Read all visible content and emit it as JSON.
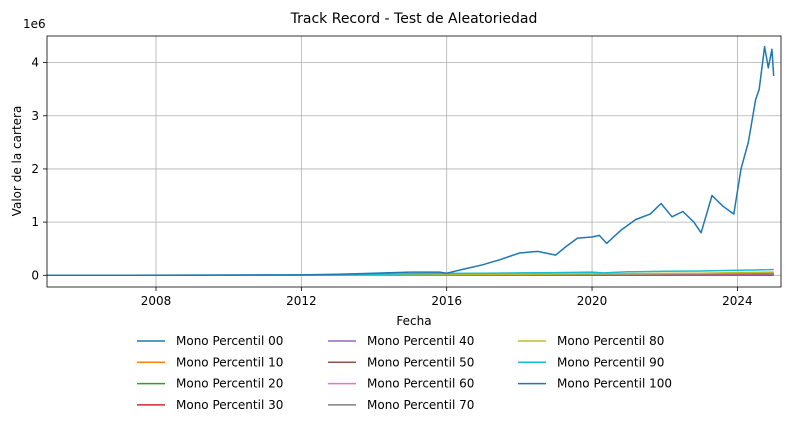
{
  "chart_data": {
    "type": "line",
    "title": "Track Record - Test de Aleatoriedad",
    "xlabel": "Fecha",
    "ylabel": "Valor de la cartera",
    "y_offset_text": "1e6",
    "xlim": [
      2005.0,
      2025.2
    ],
    "ylim": [
      -0.22,
      4.5
    ],
    "x_ticks": [
      2008,
      2012,
      2016,
      2020,
      2024
    ],
    "y_ticks": [
      0,
      1,
      2,
      3,
      4
    ],
    "grid": true,
    "legend_placement": "below-center",
    "series": [
      {
        "name": "Mono Percentil 00",
        "color": "#1f77b4",
        "x": [
          2005.0,
          2025.0
        ],
        "y": [
          0.0,
          0.0
        ]
      },
      {
        "name": "Mono Percentil 10",
        "color": "#ff7f0e",
        "x": [
          2005.0,
          2012.0,
          2016.0,
          2020.0,
          2025.0
        ],
        "y": [
          0.0,
          0.0,
          0.001,
          0.003,
          0.006
        ]
      },
      {
        "name": "Mono Percentil 20",
        "color": "#2ca02c",
        "x": [
          2005.0,
          2012.0,
          2016.0,
          2020.0,
          2025.0
        ],
        "y": [
          0.0,
          0.001,
          0.002,
          0.005,
          0.01
        ]
      },
      {
        "name": "Mono Percentil 30",
        "color": "#d62728",
        "x": [
          2005.0,
          2012.0,
          2016.0,
          2020.0,
          2025.0
        ],
        "y": [
          0.0,
          0.001,
          0.003,
          0.007,
          0.014
        ]
      },
      {
        "name": "Mono Percentil 40",
        "color": "#9467bd",
        "x": [
          2005.0,
          2012.0,
          2016.0,
          2020.0,
          2025.0
        ],
        "y": [
          0.0,
          0.001,
          0.004,
          0.009,
          0.02
        ]
      },
      {
        "name": "Mono Percentil 50",
        "color": "#8c564b",
        "x": [
          2005.0,
          2012.0,
          2016.0,
          2020.0,
          2025.0
        ],
        "y": [
          0.0,
          0.002,
          0.006,
          0.012,
          0.026
        ]
      },
      {
        "name": "Mono Percentil 60",
        "color": "#e377c2",
        "x": [
          2005.0,
          2012.0,
          2016.0,
          2020.0,
          2025.0
        ],
        "y": [
          0.0,
          0.002,
          0.008,
          0.016,
          0.034
        ]
      },
      {
        "name": "Mono Percentil 70",
        "color": "#7f7f7f",
        "x": [
          2005.0,
          2012.0,
          2016.0,
          2020.0,
          2025.0
        ],
        "y": [
          0.0,
          0.003,
          0.01,
          0.02,
          0.045
        ]
      },
      {
        "name": "Mono Percentil 80",
        "color": "#bcbd22",
        "x": [
          2005.0,
          2010.0,
          2012.0,
          2014.0,
          2016.0,
          2018.0,
          2020.0,
          2021.0,
          2022.0,
          2023.0,
          2024.0,
          2025.0
        ],
        "y": [
          0.0,
          0.002,
          0.004,
          0.008,
          0.014,
          0.02,
          0.028,
          0.032,
          0.036,
          0.04,
          0.05,
          0.06
        ]
      },
      {
        "name": "Mono Percentil 90",
        "color": "#17becf",
        "x": [
          2005.0,
          2010.0,
          2012.0,
          2013.0,
          2014.0,
          2015.0,
          2016.0,
          2017.0,
          2018.0,
          2019.0,
          2020.0,
          2020.3,
          2021.0,
          2022.0,
          2023.0,
          2024.0,
          2024.5,
          2025.0
        ],
        "y": [
          0.0,
          0.003,
          0.006,
          0.01,
          0.018,
          0.028,
          0.035,
          0.04,
          0.045,
          0.05,
          0.06,
          0.045,
          0.065,
          0.075,
          0.08,
          0.095,
          0.1,
          0.11
        ]
      },
      {
        "name": "Mono Percentil 100",
        "color": "#1f77b4",
        "x": [
          2005.0,
          2008.0,
          2010.0,
          2012.0,
          2013.0,
          2014.0,
          2015.0,
          2015.8,
          2016.0,
          2016.5,
          2017.0,
          2017.5,
          2018.0,
          2018.5,
          2019.0,
          2019.3,
          2019.6,
          2020.0,
          2020.2,
          2020.4,
          2020.8,
          2021.2,
          2021.6,
          2021.9,
          2022.2,
          2022.5,
          2022.8,
          2023.0,
          2023.3,
          2023.6,
          2023.9,
          2024.1,
          2024.3,
          2024.5,
          2024.6,
          2024.75,
          2024.85,
          2024.95,
          2025.0
        ],
        "y": [
          0.0,
          0.001,
          0.004,
          0.008,
          0.02,
          0.04,
          0.06,
          0.06,
          0.04,
          0.12,
          0.2,
          0.3,
          0.42,
          0.45,
          0.38,
          0.55,
          0.7,
          0.72,
          0.75,
          0.6,
          0.85,
          1.05,
          1.15,
          1.35,
          1.1,
          1.2,
          1.0,
          0.8,
          1.5,
          1.3,
          1.15,
          2.0,
          2.5,
          3.3,
          3.5,
          4.3,
          3.9,
          4.25,
          3.75
        ]
      }
    ]
  }
}
